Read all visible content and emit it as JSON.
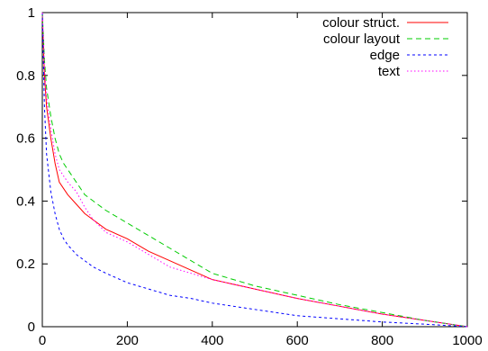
{
  "chart_data": {
    "type": "line",
    "title": "",
    "xlabel": "",
    "ylabel": "",
    "xlim": [
      0,
      1000
    ],
    "ylim": [
      0,
      1
    ],
    "x_ticks": [
      0,
      200,
      400,
      600,
      800,
      1000
    ],
    "x_tick_labels": [
      "0",
      "200",
      "400",
      "600",
      "800",
      "1000"
    ],
    "y_ticks": [
      0,
      0.2,
      0.4,
      0.6,
      0.8,
      1
    ],
    "y_tick_labels": [
      "0",
      "0.2",
      "0.4",
      "0.6",
      "0.8",
      "1"
    ],
    "grid": false,
    "legend_position": "top-right",
    "series": [
      {
        "name": "colour struct.",
        "color": "#ff0000",
        "dash": "solid",
        "x": [
          0,
          5,
          10,
          20,
          30,
          40,
          50,
          60,
          80,
          100,
          120,
          150,
          200,
          250,
          300,
          350,
          400,
          500,
          600,
          700,
          800,
          900,
          1000
        ],
        "y": [
          1.0,
          0.8,
          0.7,
          0.6,
          0.52,
          0.46,
          0.44,
          0.42,
          0.39,
          0.36,
          0.34,
          0.31,
          0.28,
          0.24,
          0.21,
          0.18,
          0.15,
          0.12,
          0.09,
          0.065,
          0.04,
          0.02,
          0.0
        ]
      },
      {
        "name": "colour layout",
        "color": "#00cc00",
        "dash": "dashed",
        "x": [
          0,
          5,
          10,
          20,
          30,
          40,
          50,
          60,
          80,
          100,
          120,
          150,
          200,
          250,
          300,
          350,
          400,
          500,
          600,
          700,
          800,
          900,
          1000
        ],
        "y": [
          1.0,
          0.85,
          0.76,
          0.67,
          0.6,
          0.55,
          0.52,
          0.5,
          0.46,
          0.42,
          0.4,
          0.37,
          0.33,
          0.29,
          0.25,
          0.21,
          0.17,
          0.13,
          0.1,
          0.07,
          0.045,
          0.02,
          0.0
        ]
      },
      {
        "name": "edge",
        "color": "#0000ff",
        "dash": "dotted-short",
        "x": [
          0,
          5,
          10,
          20,
          30,
          40,
          50,
          60,
          80,
          100,
          120,
          150,
          200,
          250,
          300,
          350,
          400,
          500,
          600,
          700,
          800,
          900,
          1000
        ],
        "y": [
          1.0,
          0.7,
          0.55,
          0.43,
          0.36,
          0.31,
          0.28,
          0.26,
          0.23,
          0.21,
          0.19,
          0.17,
          0.14,
          0.12,
          0.1,
          0.09,
          0.075,
          0.055,
          0.035,
          0.025,
          0.015,
          0.008,
          0.0
        ]
      },
      {
        "name": "text",
        "color": "#ff00ff",
        "dash": "dotted",
        "x": [
          0,
          5,
          10,
          20,
          30,
          40,
          50,
          60,
          80,
          100,
          120,
          150,
          200,
          250,
          300,
          350,
          400,
          500,
          600,
          700,
          800,
          900,
          1000
        ],
        "y": [
          1.0,
          0.83,
          0.73,
          0.63,
          0.55,
          0.5,
          0.48,
          0.46,
          0.43,
          0.38,
          0.34,
          0.3,
          0.27,
          0.23,
          0.19,
          0.17,
          0.15,
          0.12,
          0.09,
          0.065,
          0.04,
          0.02,
          0.0
        ]
      }
    ]
  }
}
